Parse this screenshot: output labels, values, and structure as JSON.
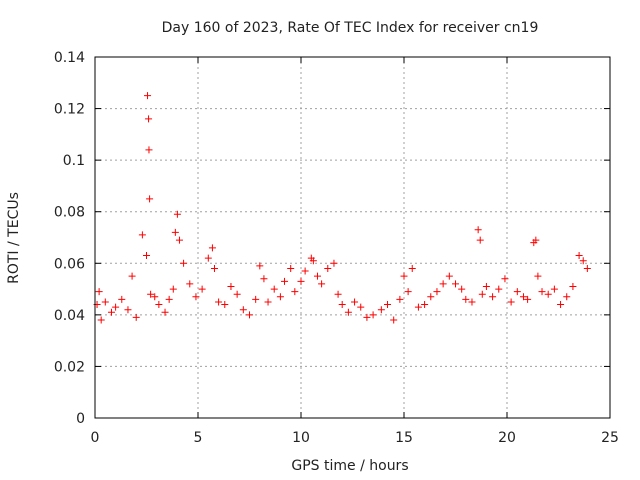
{
  "chart_data": {
    "type": "scatter",
    "title": "Day 160 of 2023, Rate Of TEC Index for receiver cn19",
    "xlabel": "GPS time / hours",
    "ylabel": "ROTI / TECUs",
    "xlim": [
      0,
      25
    ],
    "ylim": [
      0,
      0.14
    ],
    "x_ticks": [
      0,
      5,
      10,
      15,
      20,
      25
    ],
    "x_tick_labels": [
      "0",
      "5",
      "10",
      "15",
      "20",
      "25"
    ],
    "y_ticks": [
      0,
      0.02,
      0.04,
      0.06,
      0.08,
      0.1,
      0.12,
      0.14
    ],
    "y_tick_labels": [
      "0",
      "0.02",
      "0.04",
      "0.06",
      "0.08",
      "0.1",
      "0.12",
      "0.14"
    ],
    "grid": true,
    "marker": "+",
    "color": "#ff0000",
    "series": [
      {
        "name": "ROTI",
        "x": [
          0.1,
          0.2,
          0.3,
          0.5,
          0.8,
          1.0,
          1.3,
          1.6,
          1.8,
          2.0,
          2.3,
          2.5,
          2.55,
          2.6,
          2.62,
          2.65,
          2.7,
          2.9,
          3.1,
          3.4,
          3.6,
          3.8,
          3.9,
          4.0,
          4.1,
          4.3,
          4.6,
          4.9,
          5.2,
          5.5,
          5.7,
          5.8,
          6.0,
          6.3,
          6.6,
          6.9,
          7.2,
          7.5,
          7.8,
          8.0,
          8.2,
          8.4,
          8.7,
          9.0,
          9.2,
          9.5,
          9.7,
          10.0,
          10.2,
          10.5,
          10.6,
          10.8,
          11.0,
          11.3,
          11.6,
          11.8,
          12.0,
          12.3,
          12.6,
          12.9,
          13.2,
          13.5,
          13.9,
          14.2,
          14.5,
          14.8,
          15.0,
          15.2,
          15.4,
          15.7,
          16.0,
          16.3,
          16.6,
          16.9,
          17.2,
          17.5,
          17.8,
          18.0,
          18.3,
          18.6,
          18.7,
          18.8,
          19.0,
          19.3,
          19.6,
          19.9,
          20.2,
          20.5,
          20.8,
          21.0,
          21.3,
          21.4,
          21.5,
          21.7,
          22.0,
          22.3,
          22.6,
          22.9,
          23.2,
          23.5,
          23.7,
          23.9
        ],
        "values": [
          0.044,
          0.049,
          0.038,
          0.045,
          0.041,
          0.043,
          0.046,
          0.042,
          0.055,
          0.039,
          0.071,
          0.063,
          0.125,
          0.116,
          0.104,
          0.085,
          0.048,
          0.047,
          0.044,
          0.041,
          0.046,
          0.05,
          0.072,
          0.079,
          0.069,
          0.06,
          0.052,
          0.047,
          0.05,
          0.062,
          0.066,
          0.058,
          0.045,
          0.044,
          0.051,
          0.048,
          0.042,
          0.04,
          0.046,
          0.059,
          0.054,
          0.045,
          0.05,
          0.047,
          0.053,
          0.058,
          0.049,
          0.053,
          0.057,
          0.062,
          0.061,
          0.055,
          0.052,
          0.058,
          0.06,
          0.048,
          0.044,
          0.041,
          0.045,
          0.043,
          0.039,
          0.04,
          0.042,
          0.044,
          0.038,
          0.046,
          0.055,
          0.049,
          0.058,
          0.043,
          0.044,
          0.047,
          0.049,
          0.052,
          0.055,
          0.052,
          0.05,
          0.046,
          0.045,
          0.073,
          0.069,
          0.048,
          0.051,
          0.047,
          0.05,
          0.054,
          0.045,
          0.049,
          0.047,
          0.046,
          0.068,
          0.069,
          0.055,
          0.049,
          0.048,
          0.05,
          0.044,
          0.047,
          0.051,
          0.063,
          0.061,
          0.058
        ]
      }
    ]
  }
}
